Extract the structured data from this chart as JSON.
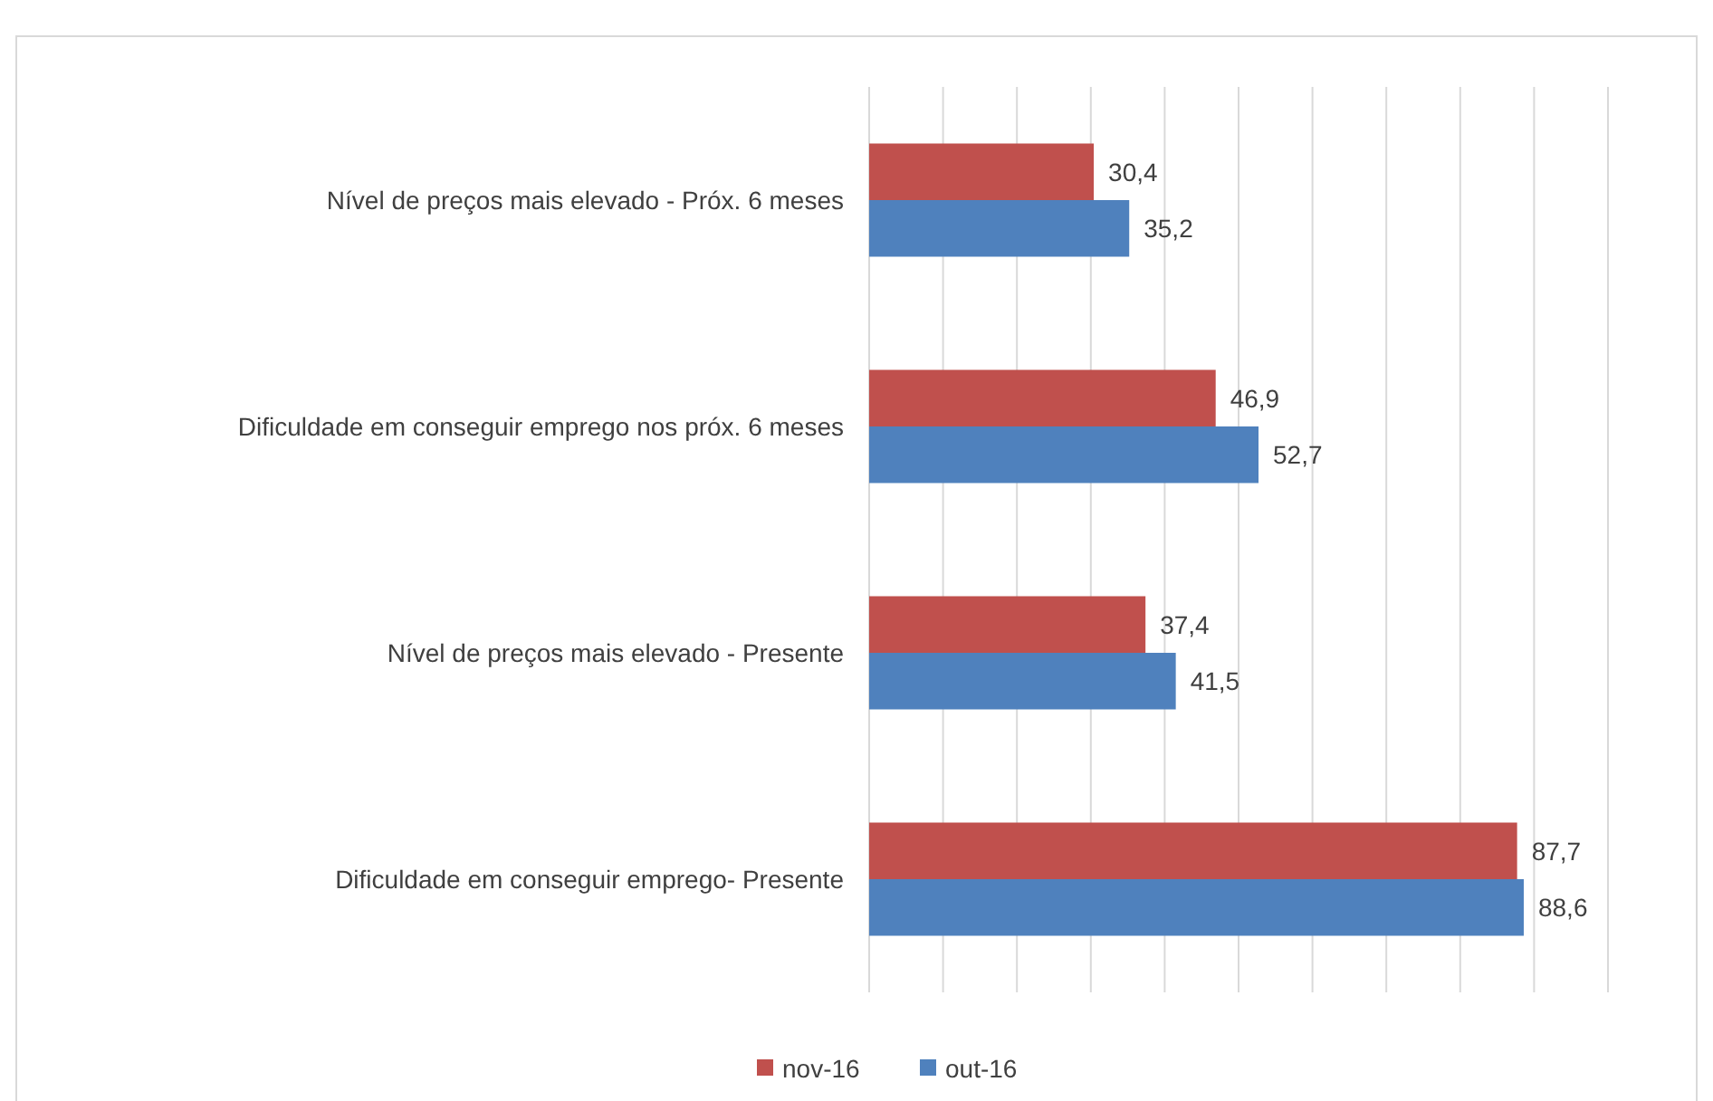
{
  "chart_data": {
    "type": "bar",
    "orientation": "horizontal",
    "categories": [
      "Nível de preços mais elevado - Próx. 6 meses",
      "Dificuldade em conseguir emprego nos próx. 6 meses",
      "Nível de preços mais elevado - Presente",
      "Dificuldade em conseguir emprego- Presente"
    ],
    "series": [
      {
        "name": "nov-16",
        "color": "#c0504d",
        "values": [
          30.4,
          46.9,
          37.4,
          87.7
        ],
        "value_labels": [
          "30,4",
          "46,9",
          "37,4",
          "87,7"
        ]
      },
      {
        "name": "out-16",
        "color": "#4f81bd",
        "values": [
          35.2,
          52.7,
          41.5,
          88.6
        ],
        "value_labels": [
          "35,2",
          "52,7",
          "41,5",
          "88,6"
        ]
      }
    ],
    "tick_labels": "y",
    "grid": "x",
    "legend": "bottom"
  }
}
